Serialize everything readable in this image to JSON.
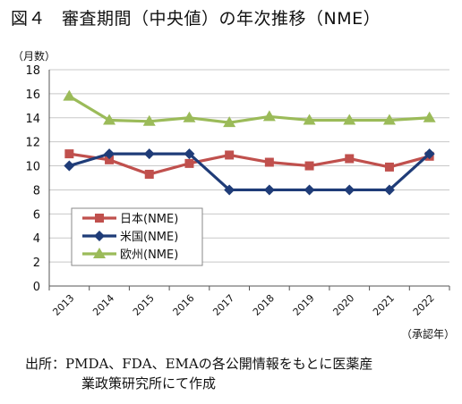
{
  "figure": {
    "number": "図４",
    "title": "審査期間（中央値）の年次推移（NME）",
    "source_line1": "出所：PMDA、FDA、EMAの各公開情報をもとに医薬産",
    "source_line2": "業政策研究所にて作成"
  },
  "chart_data": {
    "type": "line",
    "title": "審査期間（中央値）の年次推移（NME）",
    "ylabel": "（月数）",
    "xlabel": "（承認年）",
    "categories": [
      "2013",
      "2014",
      "2015",
      "2016",
      "2017",
      "2018",
      "2019",
      "2020",
      "2021",
      "2022"
    ],
    "ylim": [
      0,
      18
    ],
    "yticks": [
      0,
      2,
      4,
      6,
      8,
      10,
      12,
      14,
      16,
      18
    ],
    "grid": true,
    "legend_position": "left-bottom",
    "series": [
      {
        "name": "日本(NME)",
        "color": "#c0504d",
        "marker": "square",
        "values": [
          11.0,
          10.5,
          9.3,
          10.2,
          10.9,
          10.3,
          10.0,
          10.6,
          9.9,
          10.8
        ]
      },
      {
        "name": "米国(NME)",
        "color": "#1f3c78",
        "marker": "diamond",
        "values": [
          10.0,
          11.0,
          11.0,
          11.0,
          8.0,
          8.0,
          8.0,
          8.0,
          8.0,
          11.0
        ]
      },
      {
        "name": "欧州(NME)",
        "color": "#9bbb59",
        "marker": "triangle",
        "values": [
          15.8,
          13.8,
          13.7,
          14.0,
          13.6,
          14.1,
          13.8,
          13.8,
          13.8,
          14.0
        ]
      }
    ]
  }
}
